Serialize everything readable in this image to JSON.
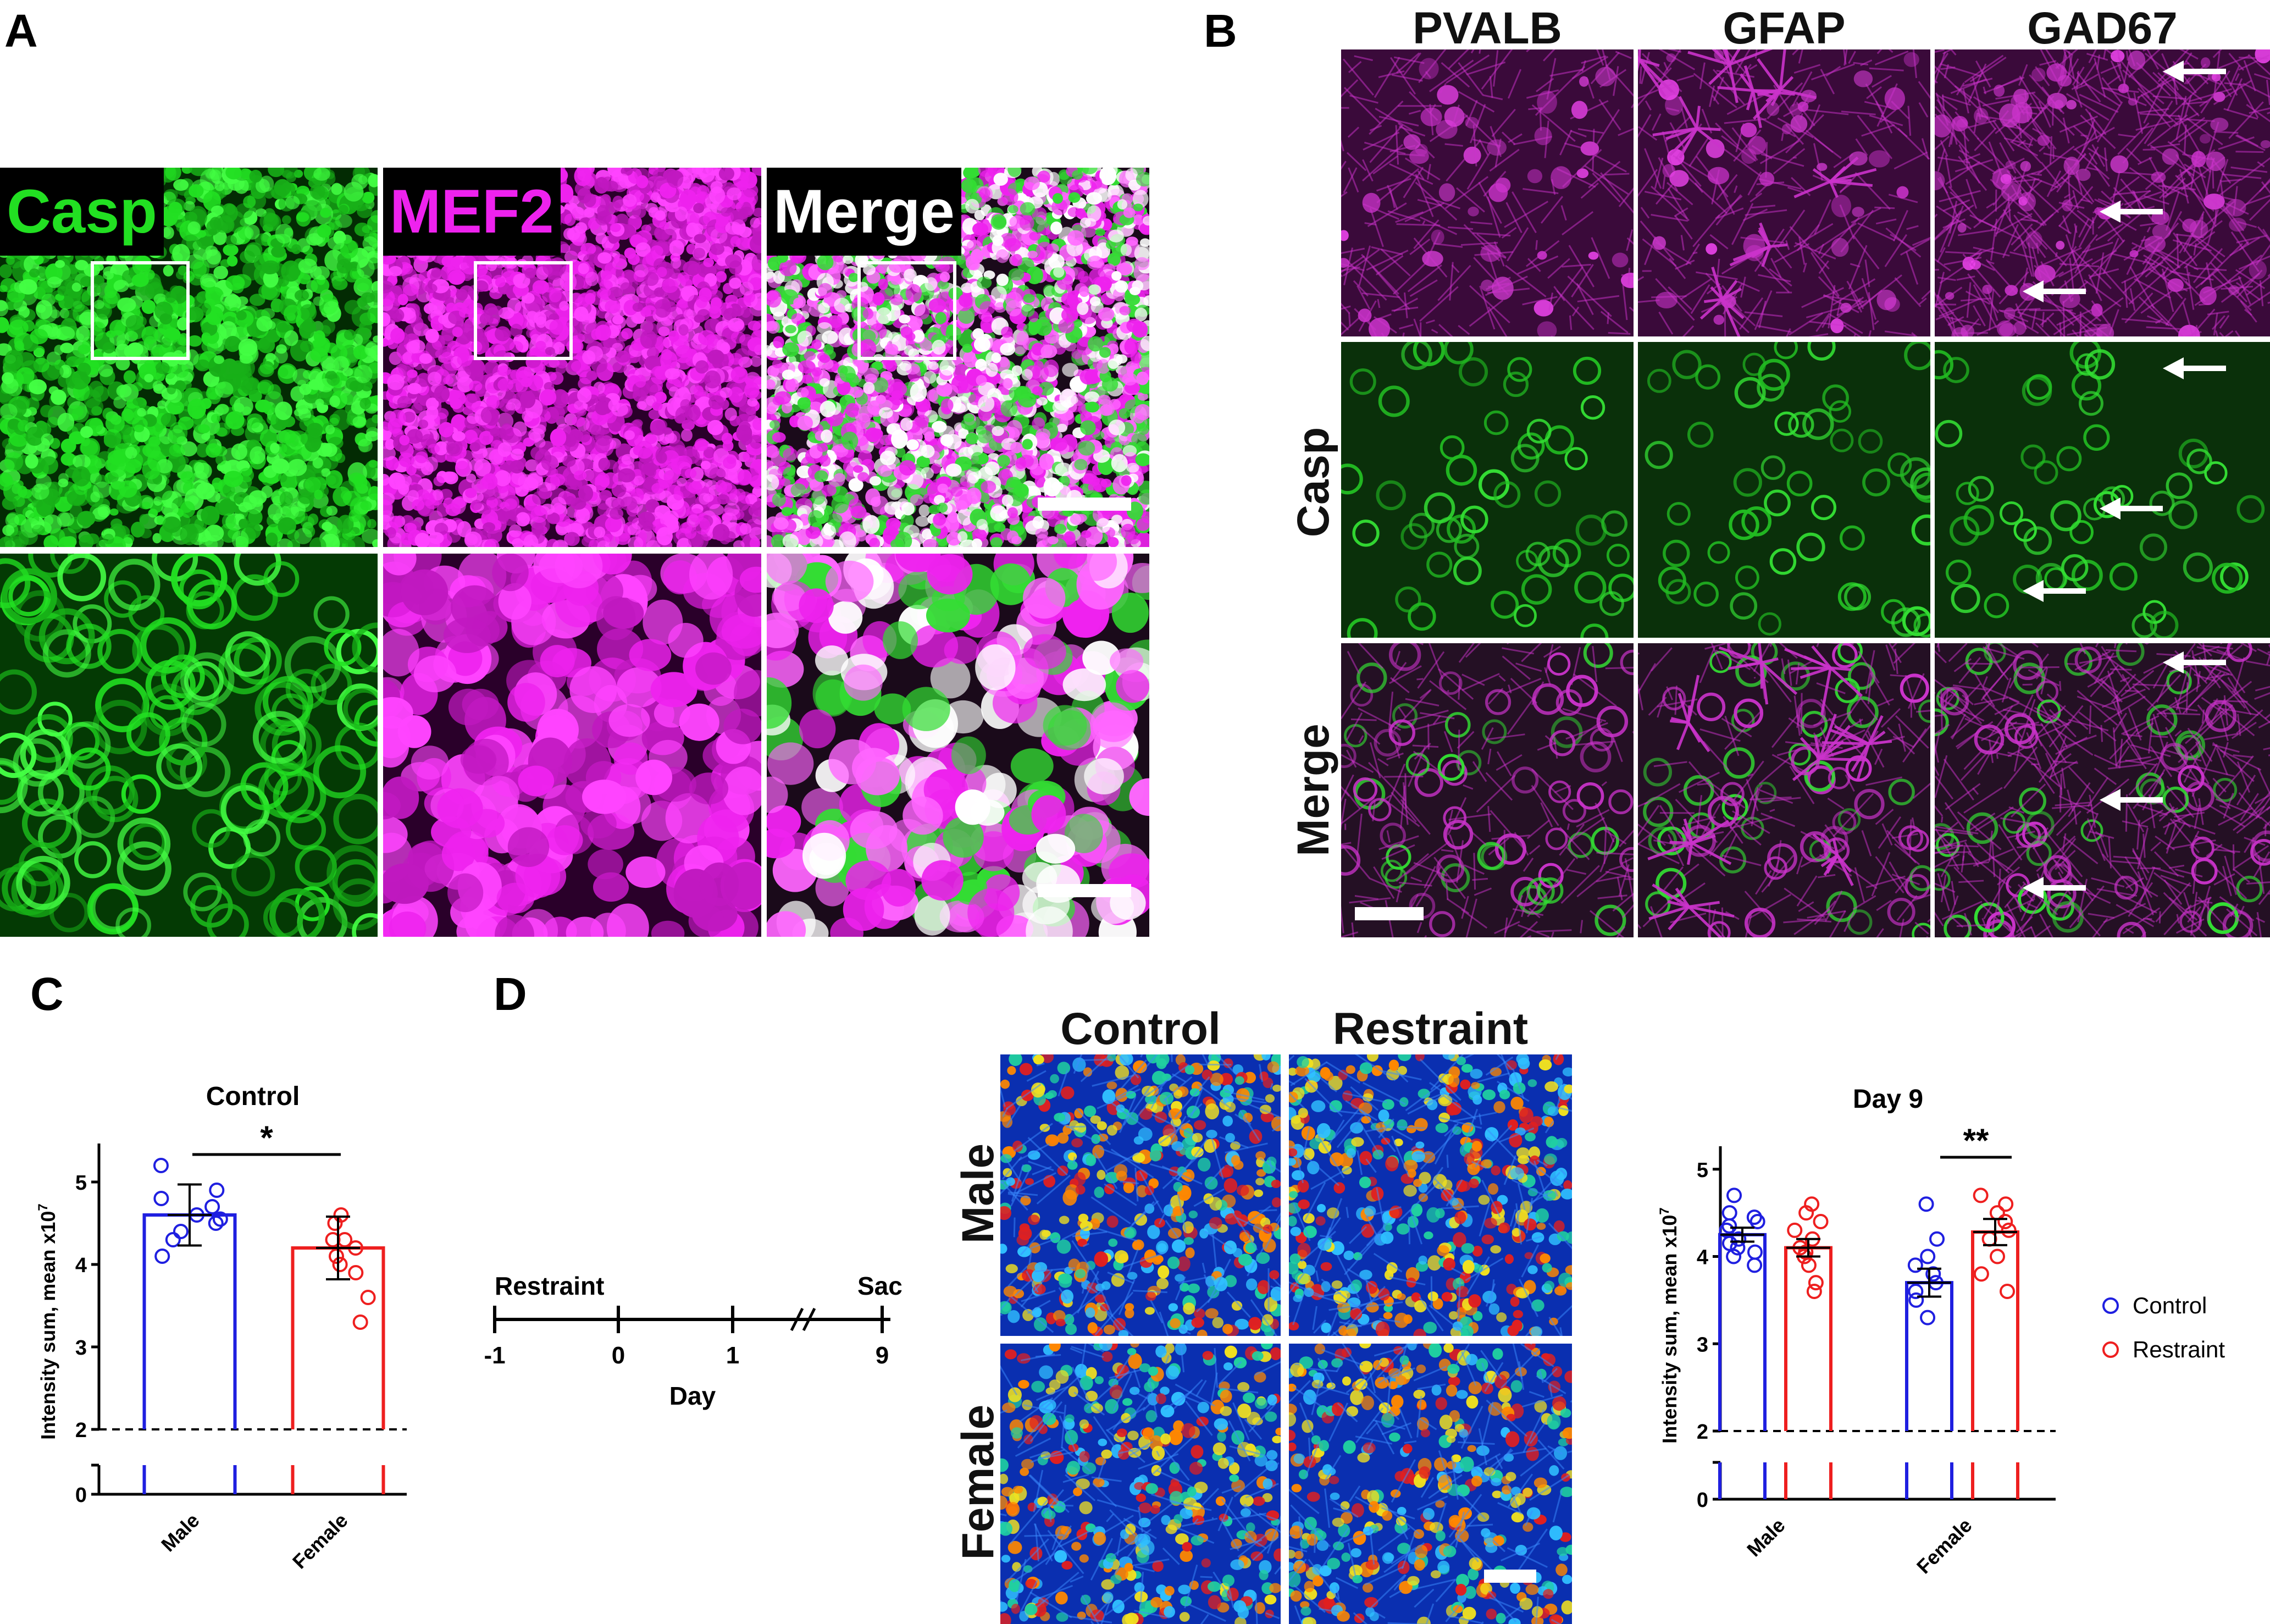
{
  "panel_labels": {
    "a": "A",
    "b": "B",
    "c": "C",
    "d": "D"
  },
  "panel_a": {
    "tags": [
      "Casp",
      "MEF2",
      "Merge"
    ],
    "colors": {
      "green": "#22e022",
      "magenta": "#ee22ee",
      "merge": "#ffffff"
    }
  },
  "panel_b": {
    "columns": [
      "PVALB",
      "GFAP",
      "GAD67"
    ],
    "rows": [
      "Casp",
      "Merge"
    ]
  },
  "panel_d": {
    "columns": [
      "Control",
      "Restraint"
    ],
    "rows": [
      "Male",
      "Female"
    ],
    "timeline": {
      "start_label": "Restraint",
      "end_label": "Sac",
      "ticks": [
        "-1",
        "0",
        "1",
        "9"
      ],
      "axis_label": "Day"
    }
  },
  "chart_data": [
    {
      "type": "bar",
      "title": "Control",
      "categories": [
        "Male",
        "Female"
      ],
      "ylabel": "Intensity sum, mean x10",
      "ylabel_sup": "7",
      "yticks": [
        "0",
        "2",
        "3",
        "4",
        "5"
      ],
      "ylim": [
        0,
        5.4
      ],
      "axis_break": 2,
      "significance": "*",
      "series": [
        {
          "color": "#1f1fe0",
          "values": [
            4.6,
            4.2
          ],
          "error": [
            0.37,
            0.38
          ],
          "points": [
            [
              4.3,
              4.5,
              4.6,
              4.9,
              5.2,
              4.7,
              4.4,
              4.8,
              4.1,
              4.55
            ],
            [
              3.6,
              4.0,
              4.5,
              4.6,
              4.3,
              4.2,
              3.9,
              4.3,
              4.1,
              3.3
            ]
          ]
        }
      ],
      "colors": [
        "#1f1fe0",
        "#ee1f1f"
      ]
    },
    {
      "type": "bar",
      "title": "Day 9",
      "categories": [
        "Male",
        "Female"
      ],
      "ylabel": "Intensity sum, mean x10",
      "ylabel_sup": "7",
      "yticks": [
        "0",
        "2",
        "3",
        "4",
        "5"
      ],
      "ylim": [
        0,
        5.2
      ],
      "axis_break": 2,
      "significance": "**",
      "series": [
        {
          "name": "Control",
          "color": "#1f1fe0",
          "values": [
            4.25,
            3.7
          ],
          "error": [
            0.08,
            0.16
          ],
          "points": [
            [
              4.7,
              4.5,
              4.4,
              4.3,
              4.2,
              4.1,
              4.0,
              3.9,
              4.35,
              4.15,
              4.45,
              4.05
            ],
            [
              4.6,
              4.0,
              3.9,
              3.7,
              3.5,
              3.3,
              3.6,
              3.8,
              4.2
            ]
          ]
        },
        {
          "name": "Restraint",
          "color": "#ee1f1f",
          "values": [
            4.1,
            4.28
          ],
          "error": [
            0.1,
            0.15
          ],
          "points": [
            [
              4.6,
              4.5,
              4.4,
              4.3,
              4.1,
              4.0,
              3.9,
              3.7,
              3.6,
              4.2,
              4.05
            ],
            [
              4.7,
              4.6,
              4.5,
              4.3,
              4.2,
              4.0,
              3.8,
              3.6,
              4.4
            ]
          ]
        }
      ]
    }
  ]
}
